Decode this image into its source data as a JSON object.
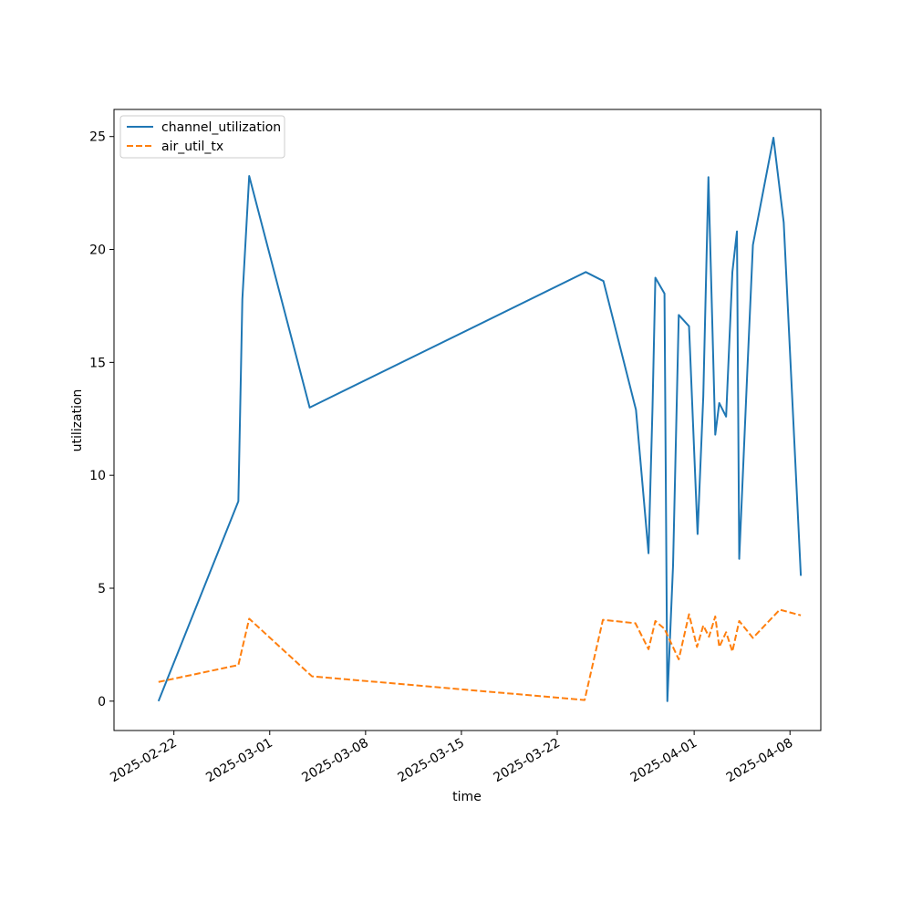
{
  "chart_data": {
    "type": "line",
    "title": "",
    "xlabel": "time",
    "ylabel": "utilization",
    "x_ticks": [
      "2025-02-22",
      "2025-03-01",
      "2025-03-08",
      "2025-03-15",
      "2025-03-22",
      "2025-04-01",
      "2025-04-08"
    ],
    "y_ticks": [
      "0",
      "5",
      "10",
      "15",
      "20",
      "25"
    ],
    "xlim": [
      "2025-02-17T15:00",
      "2025-04-10T06:00"
    ],
    "ylim": [
      -1.3,
      26.2
    ],
    "grid": false,
    "legend_position": "upper left",
    "series": [
      {
        "name": "channel_utilization",
        "color": "#1f77b4",
        "linestyle": "solid",
        "points": [
          [
            "2025-02-20T21:00",
            0.0
          ],
          [
            "2025-02-26T17:00",
            8.85
          ],
          [
            "2025-02-27T00:00",
            17.8
          ],
          [
            "2025-02-27T12:00",
            23.25
          ],
          [
            "2025-03-03T22:00",
            13.0
          ],
          [
            "2025-03-24T02:00",
            19.0
          ],
          [
            "2025-03-25T09:00",
            18.6
          ],
          [
            "2025-03-27T18:00",
            12.9
          ],
          [
            "2025-03-28T16:00",
            6.55
          ],
          [
            "2025-03-28T23:00",
            13.0
          ],
          [
            "2025-03-29T04:00",
            18.75
          ],
          [
            "2025-03-29T20:00",
            18.05
          ],
          [
            "2025-03-30T01:00",
            0.0
          ],
          [
            "2025-03-30T11:00",
            6.0
          ],
          [
            "2025-03-30T21:00",
            17.1
          ],
          [
            "2025-03-31T15:00",
            16.6
          ],
          [
            "2025-04-01T06:00",
            7.4
          ],
          [
            "2025-04-01T16:00",
            13.5
          ],
          [
            "2025-04-02T01:00",
            23.2
          ],
          [
            "2025-04-02T13:00",
            11.8
          ],
          [
            "2025-04-02T20:00",
            13.2
          ],
          [
            "2025-04-03T08:00",
            12.6
          ],
          [
            "2025-04-03T19:00",
            19.0
          ],
          [
            "2025-04-04T03:00",
            20.8
          ],
          [
            "2025-04-04T07:00",
            6.3
          ],
          [
            "2025-04-04T21:00",
            14.5
          ],
          [
            "2025-04-05T07:00",
            20.2
          ],
          [
            "2025-04-06T19:00",
            24.95
          ],
          [
            "2025-04-07T13:00",
            21.2
          ],
          [
            "2025-04-08T19:00",
            5.55
          ]
        ]
      },
      {
        "name": "air_util_tx",
        "color": "#ff7f0e",
        "linestyle": "dashed",
        "points": [
          [
            "2025-02-20T21:00",
            0.85
          ],
          [
            "2025-02-26T17:00",
            1.6
          ],
          [
            "2025-02-27T12:00",
            3.65
          ],
          [
            "2025-03-04T02:00",
            1.1
          ],
          [
            "2025-03-24T00:00",
            0.05
          ],
          [
            "2025-03-25T08:00",
            3.6
          ],
          [
            "2025-03-27T17:00",
            3.45
          ],
          [
            "2025-03-28T16:00",
            2.3
          ],
          [
            "2025-03-29T04:00",
            3.55
          ],
          [
            "2025-03-29T20:00",
            3.2
          ],
          [
            "2025-03-30T21:00",
            1.85
          ],
          [
            "2025-03-31T15:00",
            3.85
          ],
          [
            "2025-04-01T05:00",
            2.4
          ],
          [
            "2025-04-01T16:00",
            3.35
          ],
          [
            "2025-04-02T02:00",
            2.85
          ],
          [
            "2025-04-02T13:00",
            3.75
          ],
          [
            "2025-04-02T20:00",
            2.4
          ],
          [
            "2025-04-03T08:00",
            3.05
          ],
          [
            "2025-04-03T19:00",
            2.2
          ],
          [
            "2025-04-04T07:00",
            3.55
          ],
          [
            "2025-04-05T07:00",
            2.8
          ],
          [
            "2025-04-07T06:00",
            4.05
          ],
          [
            "2025-04-08T19:00",
            3.8
          ]
        ]
      }
    ]
  }
}
